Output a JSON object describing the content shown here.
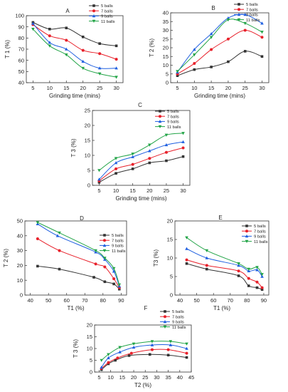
{
  "series_colors": [
    "#333333",
    "#e8202a",
    "#1f5fe0",
    "#22a447"
  ],
  "chart_data": [
    {
      "type": "line",
      "panel": "A",
      "xlabel": "Grinding time (mins)",
      "ylabel": "T 1 (%)",
      "xlim": [
        3,
        32
      ],
      "ylim": [
        40,
        100
      ],
      "xticks": [
        5,
        10,
        15,
        20,
        25,
        30
      ],
      "yticks": [
        40,
        50,
        60,
        70,
        80,
        90,
        100
      ],
      "x": [
        5,
        10,
        15,
        20,
        25,
        30
      ],
      "legend_position": "top-right",
      "grid": false,
      "series": [
        {
          "name": "5 balls",
          "values": [
            94,
            88,
            89,
            81,
            75,
            73
          ]
        },
        {
          "name": "7 balls",
          "values": [
            92,
            82,
            78,
            69,
            66,
            61
          ]
        },
        {
          "name": "9 balls",
          "values": [
            93,
            76,
            70,
            59,
            53,
            53
          ]
        },
        {
          "name": "11 balls",
          "values": [
            88,
            73,
            65,
            53,
            48,
            45
          ]
        }
      ]
    },
    {
      "type": "line",
      "panel": "B",
      "xlabel": "Grinding time (mins)",
      "ylabel": "T 2 (%)",
      "xlim": [
        3,
        32
      ],
      "ylim": [
        0,
        40
      ],
      "xticks": [
        5,
        10,
        15,
        20,
        25,
        30
      ],
      "yticks": [
        0,
        5,
        10,
        15,
        20,
        25,
        30,
        35,
        40
      ],
      "x": [
        5,
        10,
        15,
        20,
        25,
        30
      ],
      "legend_position": "top-right",
      "grid": false,
      "series": [
        {
          "name": "5 balls",
          "values": [
            4,
            7.5,
            9,
            12,
            18,
            15
          ]
        },
        {
          "name": "7 balls",
          "values": [
            5,
            11,
            19,
            25,
            30,
            26
          ]
        },
        {
          "name": "9 balls",
          "values": [
            6,
            19,
            28,
            37,
            39,
            34
          ]
        },
        {
          "name": "11 balls",
          "values": [
            6.5,
            16,
            26,
            36,
            34,
            29
          ]
        }
      ]
    },
    {
      "type": "line",
      "panel": "C",
      "xlabel": "Grinding time (mins)",
      "ylabel": "T 3 (%)",
      "xlim": [
        3,
        32
      ],
      "ylim": [
        0,
        25
      ],
      "xticks": [
        5,
        10,
        15,
        20,
        25,
        30
      ],
      "yticks": [
        0,
        5,
        10,
        15,
        20,
        25
      ],
      "x": [
        5,
        10,
        15,
        20,
        25,
        30
      ],
      "legend_position": "top-right",
      "grid": false,
      "series": [
        {
          "name": "5 balls",
          "values": [
            1,
            4,
            5.5,
            7.5,
            8.2,
            9.6
          ]
        },
        {
          "name": "7 balls",
          "values": [
            1.5,
            5.5,
            7,
            9,
            11,
            12.5
          ]
        },
        {
          "name": "9 balls",
          "values": [
            2,
            7.5,
            9.5,
            11.5,
            13.5,
            14.5
          ]
        },
        {
          "name": "11 balls",
          "values": [
            5,
            9,
            10.5,
            13.5,
            16.8,
            17.4
          ]
        }
      ]
    },
    {
      "type": "line",
      "panel": "D",
      "xlabel": "T1 (%)",
      "ylabel": "T 2 (%)",
      "xlim": [
        37,
        93
      ],
      "ylim": [
        0,
        50
      ],
      "xticks": [
        40,
        50,
        60,
        70,
        80,
        90
      ],
      "yticks": [
        0,
        10,
        20,
        30,
        40,
        50
      ],
      "legend_position": "top-right",
      "grid": false,
      "series": [
        {
          "name": "5 balls",
          "points": [
            [
              44,
              19.5
            ],
            [
              56,
              17.5
            ],
            [
              75,
              12
            ],
            [
              81,
              9
            ],
            [
              86,
              7.5
            ],
            [
              89,
              4
            ]
          ]
        },
        {
          "name": "7 balls",
          "points": [
            [
              44,
              38
            ],
            [
              56,
              30
            ],
            [
              76,
              21
            ],
            [
              81,
              19
            ],
            [
              86,
              11
            ],
            [
              89,
              5
            ]
          ]
        },
        {
          "name": "9 balls",
          "points": [
            [
              44,
              48
            ],
            [
              55,
              40
            ],
            [
              76,
              29
            ],
            [
              81,
              24
            ],
            [
              86,
              16
            ],
            [
              89,
              6
            ]
          ]
        },
        {
          "name": "11 balls",
          "points": [
            [
              44,
              49
            ],
            [
              56,
              42
            ],
            [
              76,
              30
            ],
            [
              81,
              25
            ],
            [
              86,
              18
            ],
            [
              89,
              7
            ]
          ]
        }
      ]
    },
    {
      "type": "line",
      "panel": "E",
      "xlabel": "T1 (%)",
      "ylabel": "T3 (%)",
      "xlim": [
        37,
        93
      ],
      "ylim": [
        0,
        20
      ],
      "xticks": [
        40,
        50,
        60,
        70,
        80,
        90
      ],
      "yticks": [
        0,
        5,
        10,
        15,
        20
      ],
      "legend_position": "top-right",
      "grid": false,
      "series": [
        {
          "name": "5 balls",
          "points": [
            [
              44,
              8.5
            ],
            [
              56,
              7
            ],
            [
              75,
              5.2
            ],
            [
              81,
              2.5
            ],
            [
              86,
              2
            ],
            [
              89,
              1.5
            ]
          ]
        },
        {
          "name": "7 balls",
          "points": [
            [
              44,
              9.5
            ],
            [
              56,
              8
            ],
            [
              75,
              6.5
            ],
            [
              81,
              4.5
            ],
            [
              86,
              3.5
            ],
            [
              89,
              2
            ]
          ]
        },
        {
          "name": "9 balls",
          "points": [
            [
              44,
              12.5
            ],
            [
              56,
              10
            ],
            [
              75,
              8
            ],
            [
              81,
              6.5
            ],
            [
              86,
              6.8
            ],
            [
              89,
              5
            ]
          ]
        },
        {
          "name": "11 balls",
          "points": [
            [
              44,
              15.5
            ],
            [
              56,
              12
            ],
            [
              75,
              8.5
            ],
            [
              81,
              7
            ],
            [
              86,
              7.5
            ],
            [
              89,
              5.6
            ]
          ]
        }
      ]
    },
    {
      "type": "line",
      "panel": "F",
      "xlabel": "T2 (%)",
      "ylabel": "T 3 (%)",
      "xlim": [
        3,
        45
      ],
      "ylim": [
        0,
        20
      ],
      "xticks": [
        5,
        10,
        15,
        20,
        25,
        30,
        35,
        40,
        45
      ],
      "yticks": [
        0,
        5,
        10,
        15,
        20
      ],
      "legend_position": "top-center",
      "grid": false,
      "series": [
        {
          "name": "5 balls",
          "points": [
            [
              6,
              1
            ],
            [
              9,
              3.5
            ],
            [
              12,
              5
            ],
            [
              18,
              7
            ],
            [
              27,
              7.5
            ],
            [
              35,
              7.2
            ],
            [
              43,
              6.2
            ]
          ]
        },
        {
          "name": "7 balls",
          "points": [
            [
              6,
              1.5
            ],
            [
              9,
              4
            ],
            [
              13,
              6
            ],
            [
              19,
              8
            ],
            [
              28,
              9.5
            ],
            [
              35,
              9.5
            ],
            [
              43,
              8
            ]
          ]
        },
        {
          "name": "9 balls",
          "points": [
            [
              6,
              2
            ],
            [
              9,
              6
            ],
            [
              14,
              8.5
            ],
            [
              20,
              10.5
            ],
            [
              28,
              11.5
            ],
            [
              36,
              11.5
            ],
            [
              43,
              10
            ]
          ]
        },
        {
          "name": "11 balls",
          "points": [
            [
              6,
              5
            ],
            [
              9,
              7.5
            ],
            [
              14,
              10.5
            ],
            [
              20,
              12
            ],
            [
              28,
              13
            ],
            [
              36,
              13
            ],
            [
              43,
              12
            ]
          ]
        }
      ]
    }
  ]
}
